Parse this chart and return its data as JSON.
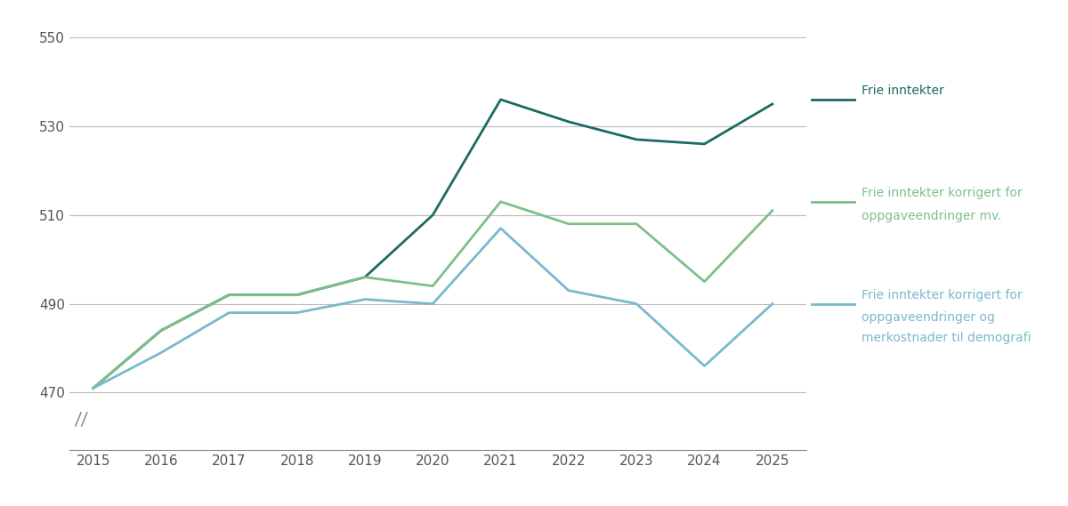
{
  "years": [
    2015,
    2016,
    2017,
    2018,
    2019,
    2020,
    2021,
    2022,
    2023,
    2024,
    2025
  ],
  "frie_inntekter": [
    471,
    484,
    492,
    492,
    496,
    510,
    536,
    531,
    527,
    526,
    535
  ],
  "korrigert_oppgave": [
    471,
    484,
    492,
    492,
    496,
    494,
    513,
    508,
    508,
    495,
    511
  ],
  "korrigert_demo": [
    471,
    479,
    488,
    488,
    491,
    490,
    507,
    493,
    490,
    476,
    490
  ],
  "color_frie": "#1b6b62",
  "color_oppgave": "#7dbf8a",
  "color_demo": "#7ab8cc",
  "ylabel_values": [
    470,
    490,
    510,
    530,
    550
  ],
  "ylim": [
    457,
    555
  ],
  "xlim": [
    2014.65,
    2025.5
  ],
  "legend_frie": "Frie inntekter",
  "legend_oppgave_line1": "Frie inntekter korrigert for",
  "legend_oppgave_line2": "oppgaveendringer mv.",
  "legend_demo_line1": "Frie inntekter korrigert for",
  "legend_demo_line2": "oppgaveendringer og",
  "legend_demo_line3": "merkostnader til demografi",
  "linewidth": 2.0,
  "background_color": "#ffffff",
  "tick_color": "#555555",
  "grid_color": "#bbbbbb",
  "spine_color": "#888888"
}
